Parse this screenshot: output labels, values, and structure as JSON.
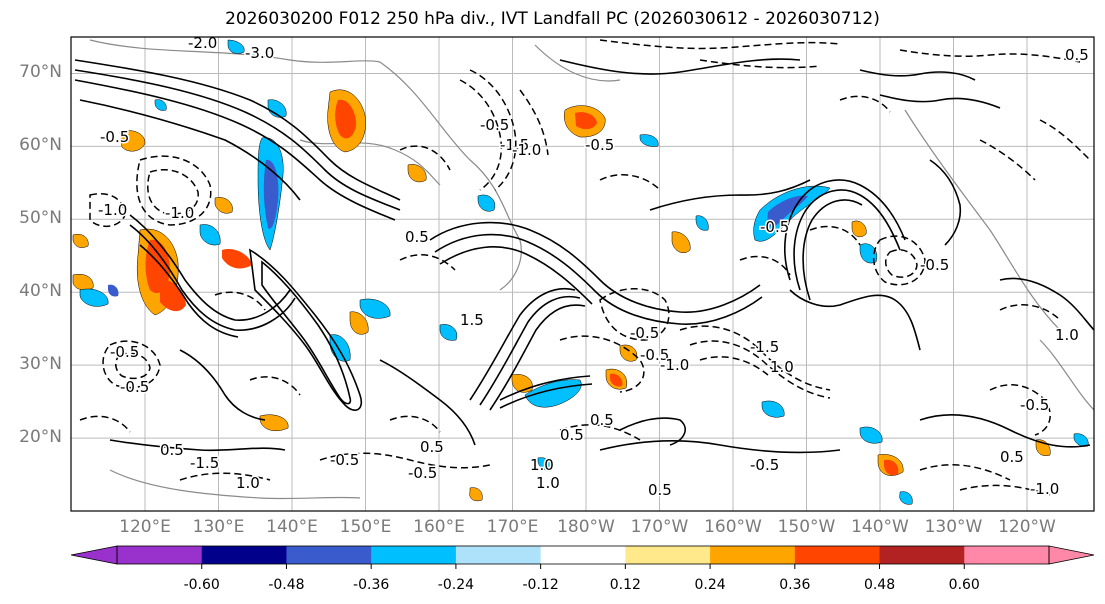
{
  "title": "2026030200 F012 250 hPa div., IVT Landfall PC (2026030612 - 2026030712)",
  "map": {
    "lat_labels": [
      "70°N",
      "60°N",
      "50°N",
      "40°N",
      "30°N",
      "20°N"
    ],
    "lat_values": [
      70,
      60,
      50,
      40,
      30,
      20
    ],
    "lon_labels": [
      "120°E",
      "130°E",
      "140°E",
      "150°E",
      "160°E",
      "170°E",
      "180°W",
      "170°W",
      "160°W",
      "150°W",
      "140°W",
      "130°W",
      "120°W"
    ],
    "lat_range": [
      10,
      75
    ],
    "contour_labels": [
      "-1.0",
      "-0.5",
      "-0.5",
      "-1.0",
      "-0.5",
      "-2.0",
      "-3.0",
      "-0.5",
      "-1.5",
      "-1.0",
      "-0.5",
      "-0.5",
      "-0.5",
      "-1.0",
      "-0.5",
      "-1.5",
      "1.0",
      "0.5",
      "-1.5",
      "1.0",
      "-0.5",
      "-0.5",
      "0.5",
      "1.0",
      "1.0",
      "0.5",
      "0.5",
      "0.5",
      "-0.5",
      "-0.5",
      "1.0",
      "-0.5",
      "0.5",
      "-1.0",
      "1.5",
      "0.5",
      "0.5"
    ],
    "colors": {
      "land_outline": "#888888",
      "contour": "#000000",
      "grid": "#bbbbbb"
    }
  },
  "colorbar": {
    "labels": [
      "-0.60",
      "-0.48",
      "-0.36",
      "-0.24",
      "-0.12",
      "0.12",
      "0.24",
      "0.36",
      "0.48",
      "0.60"
    ],
    "bins": [
      {
        "color": "#9932CC"
      },
      {
        "color": "#00008B"
      },
      {
        "color": "#3A5BCC"
      },
      {
        "color": "#00BFFF"
      },
      {
        "color": "#AEE2FA"
      },
      {
        "color": "#FFFFFF"
      },
      {
        "color": "#FFE98A"
      },
      {
        "color": "#FFA500"
      },
      {
        "color": "#FF4500"
      },
      {
        "color": "#B22222"
      },
      {
        "color": "#FF88A8"
      }
    ]
  }
}
